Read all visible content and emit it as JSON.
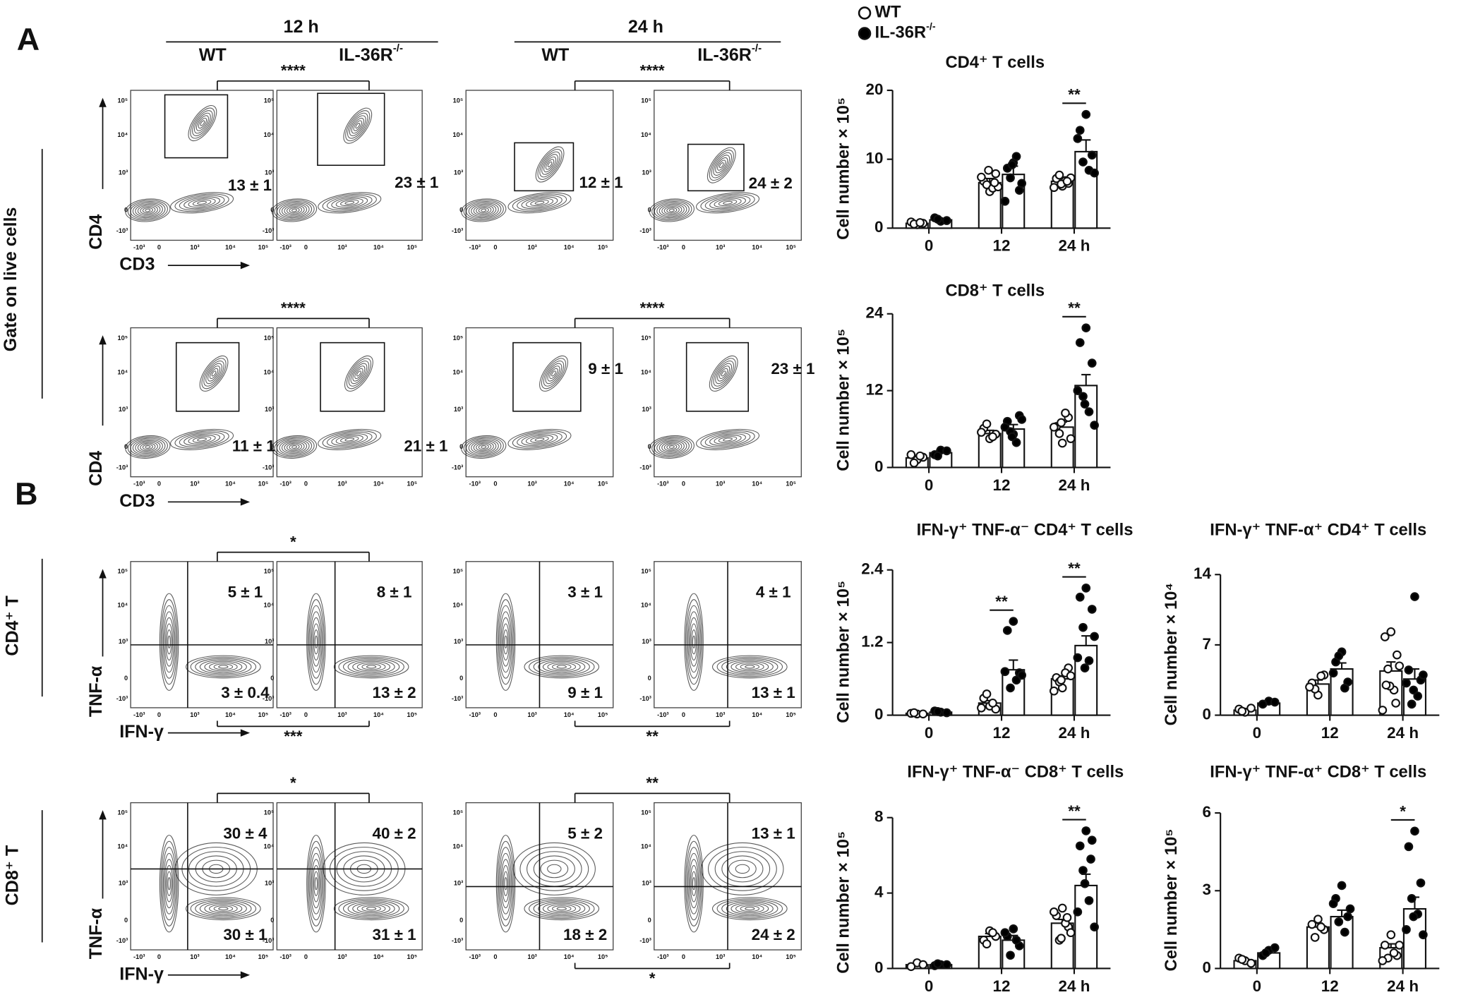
{
  "panel_labels": [
    "A",
    "B"
  ],
  "legend": [
    {
      "text": "WT",
      "fill": "#ffffff"
    },
    {
      "text": "IL-36R",
      "sup": "-/-",
      "fill": "#000000"
    }
  ],
  "flow": {
    "times": [
      "12 h",
      "24 h"
    ],
    "genotypes": [
      {
        "text": "WT"
      },
      {
        "text": "IL-36R",
        "sup": "-/-"
      }
    ],
    "side_labels": {
      "gate": "Gate on live cells",
      "cd4": "CD4⁺ T",
      "cd8": "CD8⁺ T"
    },
    "tick_labels": [
      "-10³",
      "0",
      "10³",
      "10⁴",
      "10⁵"
    ],
    "rows": [
      {
        "y_label": "CD4",
        "x_label": "CD3",
        "percentages": [
          "13 ± 1",
          "23 ± 1",
          "12 ± 1",
          "24 ± 2"
        ],
        "above": [
          "****",
          "****"
        ]
      },
      {
        "y_label": "CD4",
        "x_label": "CD3",
        "percentages": [
          "11 ± 1",
          "21 ± 1",
          "9 ± 1",
          "23 ± 1"
        ],
        "above": [
          "****",
          "****"
        ]
      },
      {
        "y_label": "TNF-α",
        "x_label": "IFN-γ",
        "upper": [
          "5 ± 1",
          "8 ± 1",
          "3 ± 1",
          "4 ± 1"
        ],
        "lower": [
          "3 ± 0.4",
          "13 ± 2",
          "9 ± 1",
          "13 ± 1"
        ],
        "above": [
          "*",
          null
        ],
        "below": [
          "***",
          "**"
        ]
      },
      {
        "y_label": "TNF-α",
        "x_label": "IFN-γ",
        "upper": [
          "30 ± 4",
          "40 ± 2",
          "5 ± 2",
          "13 ± 1"
        ],
        "lower": [
          "30 ± 1",
          "31 ± 1",
          "18 ± 2",
          "24 ± 2"
        ],
        "above": [
          "*",
          "**"
        ],
        "below": [
          null,
          "*"
        ]
      }
    ]
  },
  "chart_data": [
    {
      "type": "bar",
      "title": "CD4⁺ T cells",
      "y_label": "Cell number × 10⁵",
      "categories": [
        "0",
        "12",
        "24 h"
      ],
      "ylim": [
        0,
        20
      ],
      "yticks": [
        0,
        10,
        20
      ],
      "bar_color": "#ffffff",
      "significance": [
        null,
        null,
        "**"
      ],
      "series": [
        {
          "color": "#ffffff",
          "values": [
            0.7,
            6.6,
            6.8
          ],
          "errors": [
            0.2,
            0.6,
            0.4
          ],
          "points": [
            [
              0.5,
              0.9,
              0.7,
              0.6,
              0.8
            ],
            [
              5.3,
              6.8,
              7.9,
              6.3,
              5.8,
              7.4,
              6.0,
              8.4,
              6.6
            ],
            [
              6.1,
              7.2,
              6.5,
              7.7,
              6.9,
              5.9,
              7.3,
              6.4,
              6.8
            ]
          ]
        },
        {
          "color": "#000000",
          "values": [
            1.2,
            7.8,
            11.1
          ],
          "errors": [
            0.2,
            1.2,
            1.7
          ],
          "points": [
            [
              1.0,
              1.5,
              1.1,
              1.3
            ],
            [
              9.5,
              8.7,
              5.5,
              7.3,
              10.4,
              3.9,
              6.5,
              9.2
            ],
            [
              16.5,
              14.2,
              10.6,
              9.6,
              8.4,
              13.0,
              8.0
            ]
          ]
        }
      ]
    },
    {
      "type": "bar",
      "title": "CD8⁺ T cells",
      "y_label": "Cell number × 10⁵",
      "categories": [
        "0",
        "12",
        "24 h"
      ],
      "ylim": [
        0,
        24
      ],
      "yticks": [
        0,
        12,
        24
      ],
      "bar_color": "#ffffff",
      "significance": [
        null,
        null,
        "**"
      ],
      "series": [
        {
          "color": "#ffffff",
          "values": [
            1.5,
            5.3,
            6.3
          ],
          "errors": [
            0.4,
            0.5,
            0.8
          ],
          "points": [
            [
              1.2,
              2.0,
              1.6,
              0.7,
              1.8
            ],
            [
              4.5,
              6.1,
              5.2,
              6.8,
              4.8,
              5.5
            ],
            [
              3.8,
              6.4,
              7.8,
              5.3,
              8.5,
              6.3,
              4.5,
              7.0
            ]
          ]
        },
        {
          "color": "#000000",
          "values": [
            2.3,
            6.0,
            12.8
          ],
          "errors": [
            0.4,
            0.7,
            1.7
          ],
          "points": [
            [
              2.7,
              2.0,
              2.6,
              1.8
            ],
            [
              5.2,
              7.2,
              8.1,
              5.6,
              3.9,
              6.3,
              7.5,
              4.8
            ],
            [
              21.8,
              19.5,
              16.3,
              11.1,
              8.7,
              12.0,
              6.6,
              9.9
            ]
          ]
        }
      ]
    },
    {
      "type": "bar",
      "title": "IFN-γ⁺ TNF-α⁻ CD4⁺ T cells",
      "y_label": "Cell number × 10⁵",
      "categories": [
        "0",
        "12",
        "24 h"
      ],
      "ylim": [
        0,
        2.4
      ],
      "yticks": [
        0,
        1.2,
        2.4
      ],
      "bar_color": "#ffffff",
      "significance": [
        null,
        "**",
        "**"
      ],
      "series": [
        {
          "color": "#ffffff",
          "values": [
            0.03,
            0.2,
            0.6
          ],
          "errors": [
            0.01,
            0.04,
            0.05
          ],
          "points": [
            [
              0.02,
              0.03,
              0.02,
              0.04
            ],
            [
              0.15,
              0.28,
              0.1,
              0.35,
              0.2,
              0.12
            ],
            [
              0.45,
              0.62,
              0.78,
              0.55,
              0.7,
              0.4,
              0.65,
              0.58
            ]
          ]
        },
        {
          "color": "#000000",
          "values": [
            0.05,
            0.75,
            1.15
          ],
          "errors": [
            0.01,
            0.16,
            0.16
          ],
          "points": [
            [
              0.05,
              0.07,
              0.04,
              0.06
            ],
            [
              1.55,
              1.4,
              0.7,
              0.45,
              0.58,
              0.72,
              0.66
            ],
            [
              2.1,
              1.95,
              1.75,
              1.45,
              0.9,
              0.95,
              1.3,
              0.78
            ]
          ]
        }
      ]
    },
    {
      "type": "bar",
      "title": "IFN-γ⁺ TNF-α⁺ CD4⁺ T cells",
      "y_label": "Cell number × 10⁴",
      "categories": [
        "0",
        "12",
        "24 h"
      ],
      "ylim": [
        0,
        14
      ],
      "yticks": [
        0,
        7,
        14
      ],
      "bar_color": "#ffffff",
      "significance": [
        null,
        null,
        null
      ],
      "series": [
        {
          "color": "#ffffff",
          "values": [
            0.5,
            3.1,
            4.4
          ],
          "errors": [
            0.1,
            0.4,
            0.9
          ],
          "points": [
            [
              0.3,
              0.6,
              0.7,
              0.4
            ],
            [
              2.0,
              3.2,
              4.0,
              2.6,
              3.9,
              2.8
            ],
            [
              8.3,
              7.8,
              6.0,
              4.6,
              2.5,
              0.5,
              4.9,
              2.9,
              1.2,
              3.0
            ]
          ]
        },
        {
          "color": "#000000",
          "values": [
            1.2,
            4.6,
            3.6
          ],
          "errors": [
            0.1,
            0.6,
            1.0
          ],
          "points": [
            [
              1.4,
              1.1,
              1.3
            ],
            [
              6.3,
              5.3,
              3.3,
              5.9,
              2.7,
              4.2
            ],
            [
              11.8,
              4.5,
              3.5,
              1.1,
              1.9,
              3.2,
              4.0,
              2.5
            ]
          ]
        }
      ]
    },
    {
      "type": "bar",
      "title": "IFN-γ⁺ TNF-α⁻ CD8⁺ T cells",
      "y_label": "Cell number × 10⁵",
      "categories": [
        "0",
        "12",
        "24 h"
      ],
      "ylim": [
        0,
        8
      ],
      "yticks": [
        0,
        4,
        8
      ],
      "bar_color": "#ffffff",
      "significance": [
        null,
        null,
        "**"
      ],
      "series": [
        {
          "color": "#ffffff",
          "values": [
            0.2,
            1.7,
            2.4
          ],
          "errors": [
            0.05,
            0.15,
            0.2
          ],
          "points": [
            [
              0.3,
              0.1,
              0.2
            ],
            [
              2.0,
              1.5,
              1.7,
              1.3,
              1.9
            ],
            [
              3.2,
              2.8,
              2.2,
              1.5,
              2.4,
              3.0,
              1.9,
              1.6,
              2.7
            ]
          ]
        },
        {
          "color": "#000000",
          "values": [
            0.2,
            1.5,
            4.4
          ],
          "errors": [
            0.03,
            0.25,
            0.6
          ],
          "points": [
            [
              0.2,
              0.15,
              0.2,
              0.25
            ],
            [
              2.1,
              1.7,
              1.2,
              0.7,
              1.5,
              1.9
            ],
            [
              7.3,
              6.5,
              6.8,
              5.2,
              3.6,
              3.0,
              2.2,
              4.5,
              5.8
            ]
          ]
        }
      ]
    },
    {
      "type": "bar",
      "title": "IFN-γ⁺ TNF-α⁺ CD8⁺ T cells",
      "y_label": "Cell number × 10⁵",
      "categories": [
        "0",
        "12",
        "24 h"
      ],
      "ylim": [
        0,
        6
      ],
      "yticks": [
        0,
        3,
        6
      ],
      "bar_color": "#ffffff",
      "significance": [
        null,
        null,
        "*"
      ],
      "series": [
        {
          "color": "#ffffff",
          "values": [
            0.3,
            1.6,
            0.8
          ],
          "errors": [
            0.05,
            0.15,
            0.15
          ],
          "points": [
            [
              0.3,
              0.4,
              0.2,
              0.35
            ],
            [
              1.9,
              1.7,
              1.5,
              1.2,
              1.6
            ],
            [
              1.3,
              0.9,
              0.5,
              0.4,
              0.6,
              0.3,
              0.9
            ]
          ]
        },
        {
          "color": "#000000",
          "values": [
            0.6,
            2.0,
            2.3
          ],
          "errors": [
            0.08,
            0.25,
            0.45
          ],
          "points": [
            [
              0.7,
              0.5,
              0.8,
              0.6
            ],
            [
              3.2,
              2.7,
              2.0,
              1.8,
              1.4,
              2.5,
              2.3
            ],
            [
              5.3,
              4.7,
              3.3,
              2.7,
              2.1,
              1.5,
              1.3,
              2.0
            ]
          ]
        }
      ]
    }
  ]
}
